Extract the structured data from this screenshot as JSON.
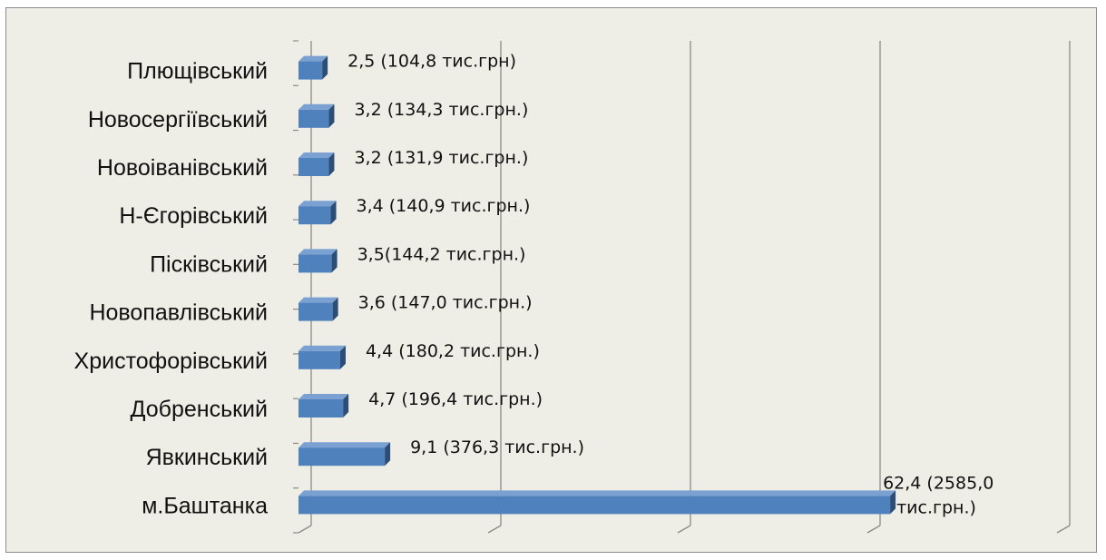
{
  "chart_data": {
    "type": "bar",
    "orientation": "horizontal",
    "three_d": true,
    "categories": [
      "Плющівський",
      "Новосергіївський",
      "Новоіванівський",
      "Н-Єгорівський",
      "Пісківський",
      "Новопавлівський",
      "Христофорівський",
      "Добренський",
      "Явкинський",
      "м.Баштанка"
    ],
    "values": [
      2.5,
      3.2,
      3.2,
      3.4,
      3.5,
      3.6,
      4.4,
      4.7,
      9.1,
      62.4
    ],
    "data_labels": [
      "2,5 (104,8 тис.грн)",
      "3,2 (134,3 тис.грн.)",
      "3,2 (131,9 тис.грн.)",
      "3,4 (140,9 тис.грн.)",
      "3,5(144,2 тис.грн.)",
      "3,6 (147,0 тис.грн.)",
      "4,4 (180,2 тис.грн.)",
      "4,7 (196,4 тис.грн.)",
      "9,1 (376,3 тис.грн.)",
      "62,4 (2585,0\nтис.грн.)"
    ],
    "xlim": [
      0,
      80
    ],
    "grid": true,
    "legend": "none",
    "colors": {
      "bar": "#4f81bd",
      "bar_side": "#2c4d75",
      "bar_top": "#7ba1d3",
      "background": "#eeeee6",
      "grid": "#8a8a8a"
    }
  }
}
